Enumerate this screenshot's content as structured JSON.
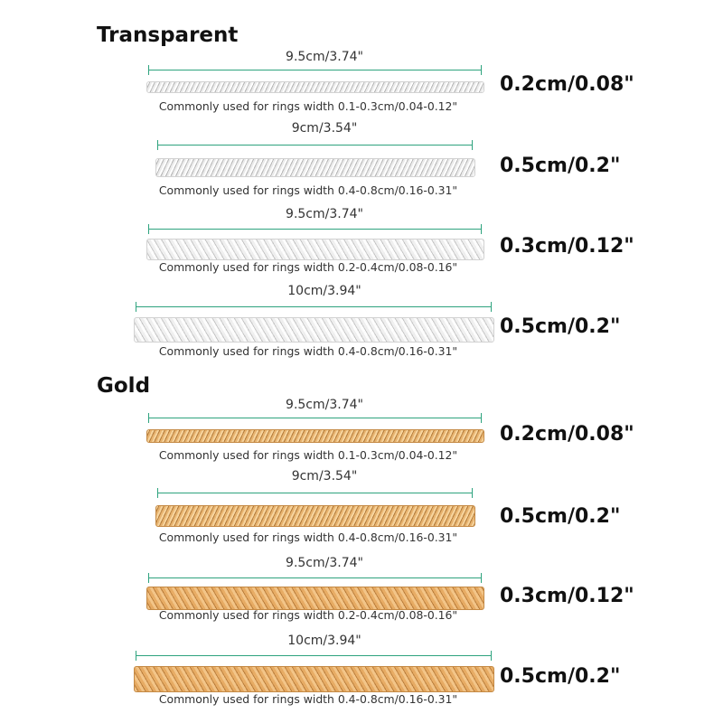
{
  "sections": [
    {
      "title": "Transparent",
      "items": [
        {
          "length": "9.5cm/3.74\"",
          "usage": "Commonly used for rings width 0.1-0.3cm/0.04-0.12\"",
          "width": "0.2cm/0.08\""
        },
        {
          "length": "9cm/3.54\"",
          "usage": "Commonly used for rings width 0.4-0.8cm/0.16-0.31\"",
          "width": "0.5cm/0.2\""
        },
        {
          "length": "9.5cm/3.74\"",
          "usage": "Commonly used for rings width 0.2-0.4cm/0.08-0.16\"",
          "width": "0.3cm/0.12\""
        },
        {
          "length": "10cm/3.94\"",
          "usage": "Commonly used for rings width 0.4-0.8cm/0.16-0.31\"",
          "width": "0.5cm/0.2\""
        }
      ]
    },
    {
      "title": "Gold",
      "items": [
        {
          "length": "9.5cm/3.74\"",
          "usage": "Commonly used for rings width 0.1-0.3cm/0.04-0.12\"",
          "width": "0.2cm/0.08\""
        },
        {
          "length": "9cm/3.54\"",
          "usage": "Commonly used for rings width 0.4-0.8cm/0.16-0.31\"",
          "width": "0.5cm/0.2\""
        },
        {
          "length": "9.5cm/3.74\"",
          "usage": "Commonly used for rings width 0.2-0.4cm/0.08-0.16\"",
          "width": "0.3cm/0.12\""
        },
        {
          "length": "10cm/3.94\"",
          "usage": "Commonly used for rings width 0.4-0.8cm/0.16-0.31\"",
          "width": "0.5cm/0.2\""
        }
      ]
    }
  ],
  "colors": {
    "dimension_line": "#2ea37e",
    "transparent_coil": "#e8e8e8",
    "gold_coil": "#e0a864"
  }
}
